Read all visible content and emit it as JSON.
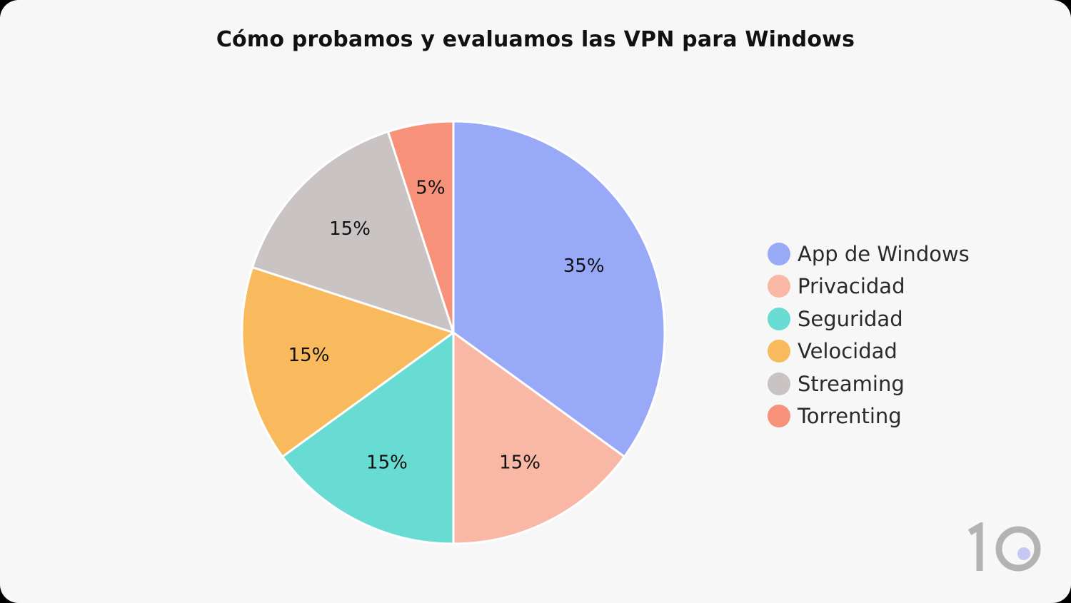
{
  "chart_data": {
    "type": "pie",
    "title": "Cómo probamos y evaluamos las VPN para Windows",
    "legend_position": "right",
    "slices": [
      {
        "label": "App de Windows",
        "value": 35,
        "value_label": "35%",
        "color": "#98aaf7"
      },
      {
        "label": "Privacidad",
        "value": 15,
        "value_label": "15%",
        "color": "#f9b8a6"
      },
      {
        "label": "Seguridad",
        "value": 15,
        "value_label": "15%",
        "color": "#68dbd3"
      },
      {
        "label": "Velocidad",
        "value": 15,
        "value_label": "15%",
        "color": "#f8ba5c"
      },
      {
        "label": "Streaming",
        "value": 15,
        "value_label": "15%",
        "color": "#c9c4c3"
      },
      {
        "label": "Torrenting",
        "value": 5,
        "value_label": "5%",
        "color": "#f7917a"
      }
    ]
  },
  "logo": {
    "text": "10",
    "digit_color": "#b3b3b3",
    "dot_color": "#c7c7f5"
  }
}
